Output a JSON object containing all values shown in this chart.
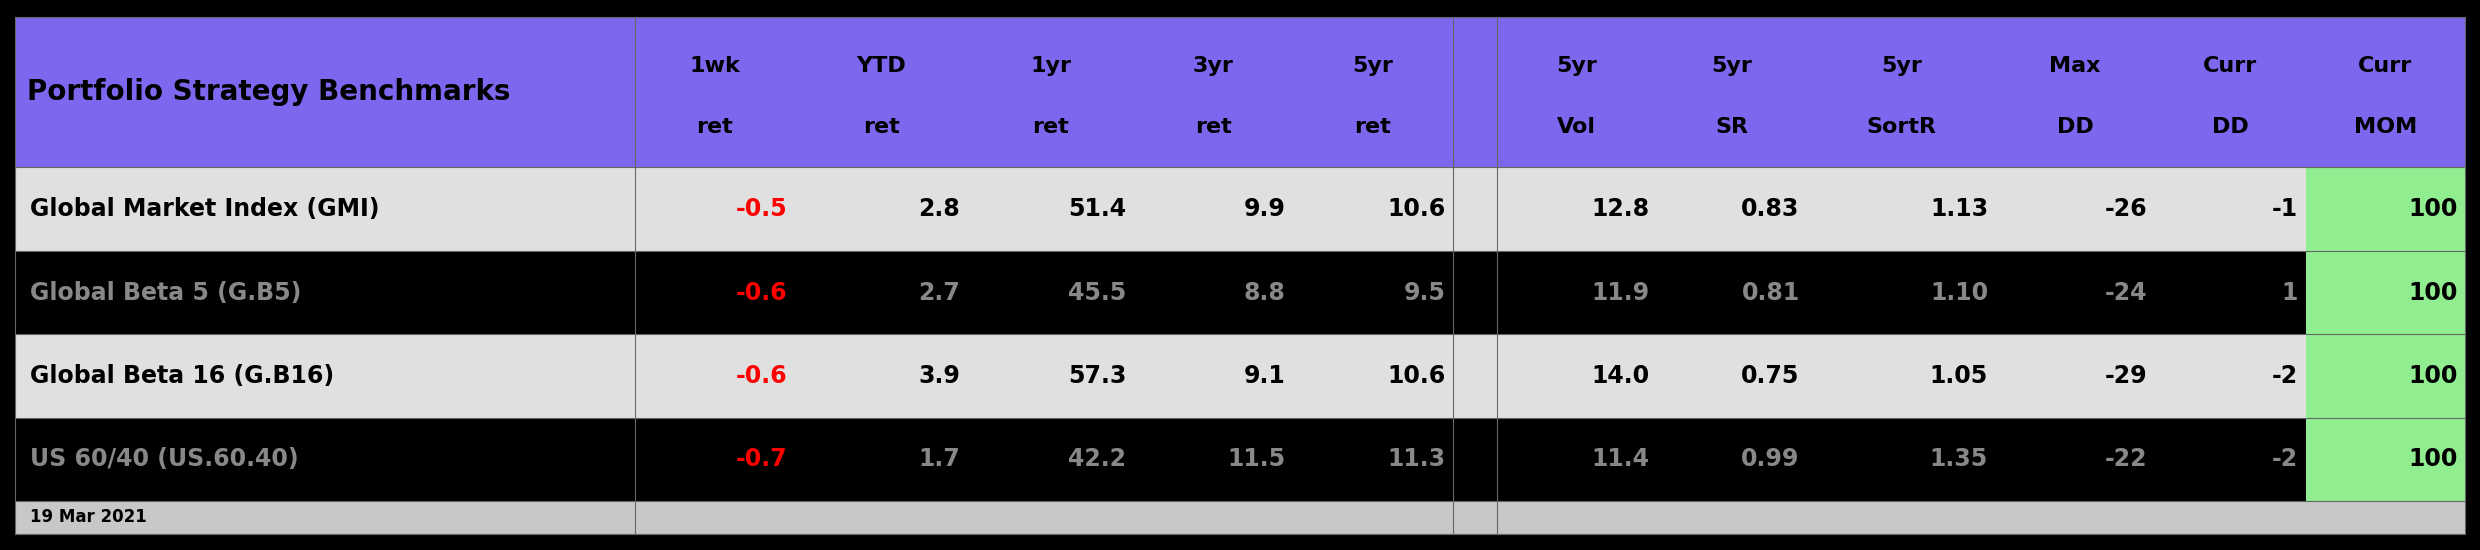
{
  "title": "Portfolio Strategy Benchmarks",
  "date_label": "19 Mar 2021",
  "col_headers_line1": [
    "1wk",
    "YTD",
    "1yr",
    "3yr",
    "5yr",
    "",
    "5yr",
    "5yr",
    "5yr",
    "Max",
    "Curr",
    "Curr"
  ],
  "col_headers_line2": [
    "ret",
    "ret",
    "ret",
    "ret",
    "ret",
    "",
    "Vol",
    "SR",
    "SortR",
    "DD",
    "DD",
    "MOM"
  ],
  "rows": [
    {
      "name": "Global Market Index (GMI)",
      "dark": false,
      "values": [
        "-0.5",
        "2.8",
        "51.4",
        "9.9",
        "10.6",
        "",
        "12.8",
        "0.83",
        "1.13",
        "-26",
        "-1",
        "100"
      ],
      "red_cols": [
        0
      ],
      "green_cols": [
        11
      ]
    },
    {
      "name": "Global Beta 5 (G.B5)",
      "dark": true,
      "values": [
        "-0.6",
        "2.7",
        "45.5",
        "8.8",
        "9.5",
        "",
        "11.9",
        "0.81",
        "1.10",
        "-24",
        "1",
        "100"
      ],
      "red_cols": [
        0
      ],
      "green_cols": [
        11
      ]
    },
    {
      "name": "Global Beta 16 (G.B16)",
      "dark": false,
      "values": [
        "-0.6",
        "3.9",
        "57.3",
        "9.1",
        "10.6",
        "",
        "14.0",
        "0.75",
        "1.05",
        "-29",
        "-2",
        "100"
      ],
      "red_cols": [
        0
      ],
      "green_cols": [
        11
      ]
    },
    {
      "name": "US 60/40 (US.60.40)",
      "dark": true,
      "values": [
        "-0.7",
        "1.7",
        "42.2",
        "11.5",
        "11.3",
        "",
        "11.4",
        "0.99",
        "1.35",
        "-22",
        "-2",
        "100"
      ],
      "red_cols": [
        0
      ],
      "green_cols": [
        11
      ]
    }
  ],
  "header_bg": "#7b68ee",
  "light_row_bg": "#e0e0e0",
  "dark_row_bg": "#000000",
  "light_text": "#000000",
  "dark_text": "#888888",
  "red_color": "#ff0000",
  "green_cell_bg": "#90ee90",
  "green_cell_text": "#000000",
  "footer_bg": "#c8c8c8",
  "outer_border": "#000000",
  "figsize": [
    24.8,
    5.5
  ],
  "dpi": 100
}
